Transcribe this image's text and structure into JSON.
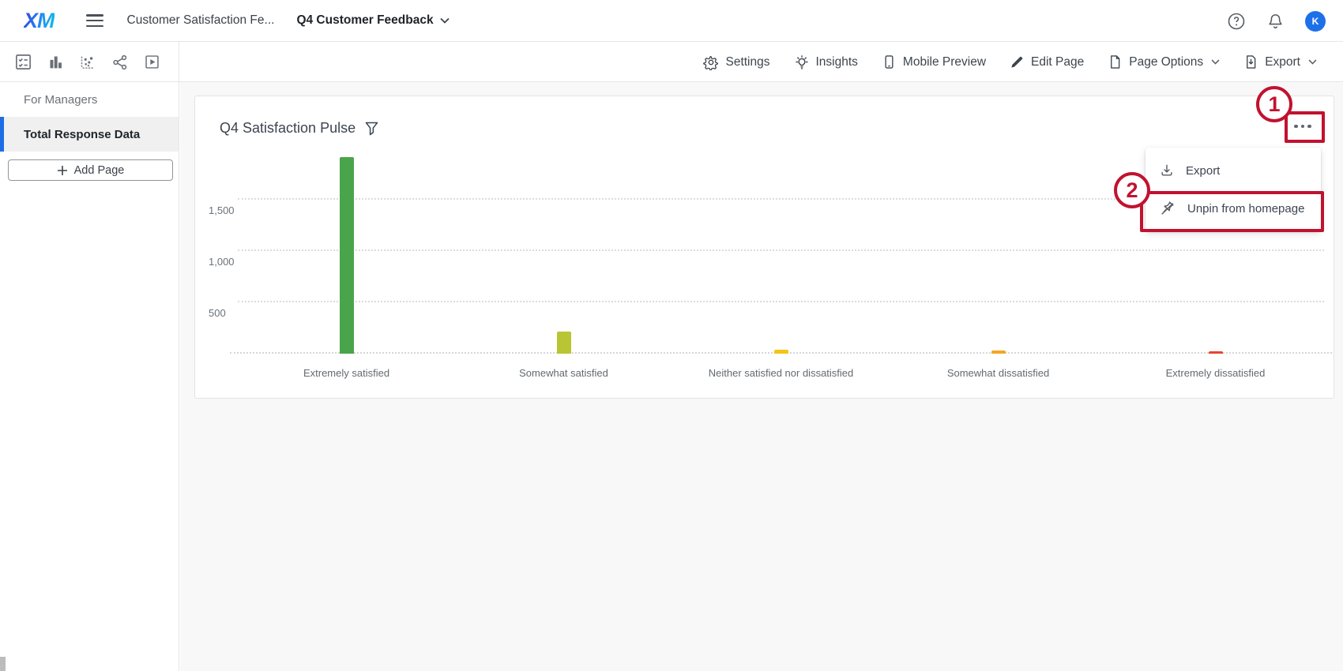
{
  "header": {
    "logo_text": "XM",
    "breadcrumb": {
      "parent": "Customer Satisfaction Fe...",
      "separator": "›",
      "current": "Q4 Customer Feedback"
    },
    "avatar_text": "K"
  },
  "icon_strip": [
    {
      "name": "survey-checklist-icon"
    },
    {
      "name": "bar-chart-icon"
    },
    {
      "name": "scatter-plot-icon"
    },
    {
      "name": "share-icon"
    },
    {
      "name": "video-play-icon"
    }
  ],
  "toolbar": {
    "actions": [
      {
        "name": "settings",
        "icon": "gear-icon",
        "label": "Settings",
        "chevron": false
      },
      {
        "name": "insights",
        "icon": "lightbulb-icon",
        "label": "Insights",
        "chevron": false
      },
      {
        "name": "mobile-preview",
        "icon": "phone-icon",
        "label": "Mobile Preview",
        "chevron": false
      },
      {
        "name": "edit-page",
        "icon": "pencil-icon",
        "label": "Edit Page",
        "chevron": false
      },
      {
        "name": "page-options",
        "icon": "page-icon",
        "label": "Page Options",
        "chevron": true
      },
      {
        "name": "export",
        "icon": "export-icon",
        "label": "Export",
        "chevron": true
      }
    ]
  },
  "sidebar": {
    "items": [
      {
        "label": "For Managers",
        "active": false
      },
      {
        "label": "Total Response Data",
        "active": true
      }
    ],
    "add_page": {
      "icon": "plus-icon",
      "label": "Add Page"
    }
  },
  "widget": {
    "title": "Q4 Satisfaction Pulse",
    "filter_icon": "funnel-icon",
    "options_icon": "dots-icon",
    "menu": {
      "items": [
        {
          "name": "export-widget",
          "icon": "download-icon",
          "label": "Export"
        },
        {
          "name": "unpin",
          "icon": "unpin-icon",
          "label": "Unpin from homepage"
        }
      ]
    }
  },
  "chart_data": {
    "type": "bar",
    "title": "Q4 Satisfaction Pulse",
    "categories": [
      "Extremely satisfied",
      "Somewhat satisfied",
      "Neither satisfied nor dissatisfied",
      "Somewhat dissatisfied",
      "Extremely dissatisfied"
    ],
    "values": [
      1915,
      215,
      40,
      30,
      20
    ],
    "bar_colors": [
      "#4aa44b",
      "#b9c532",
      "#f3c515",
      "#f5a623",
      "#e8432e"
    ],
    "xlabel": "",
    "ylabel": "",
    "ylim": [
      0,
      2000
    ],
    "yticks": [
      500,
      1000,
      1500
    ],
    "ytick_labels": [
      "500",
      "1,000",
      "1,500"
    ],
    "grid": "horizontal-dashed",
    "legend": "none"
  },
  "annotations": {
    "callout_1": "1",
    "callout_2": "2"
  },
  "colors": {
    "accent_blue": "#1b6ee5",
    "annotation_red": "#c1122f",
    "avatar_blue": "#1d70e8"
  }
}
